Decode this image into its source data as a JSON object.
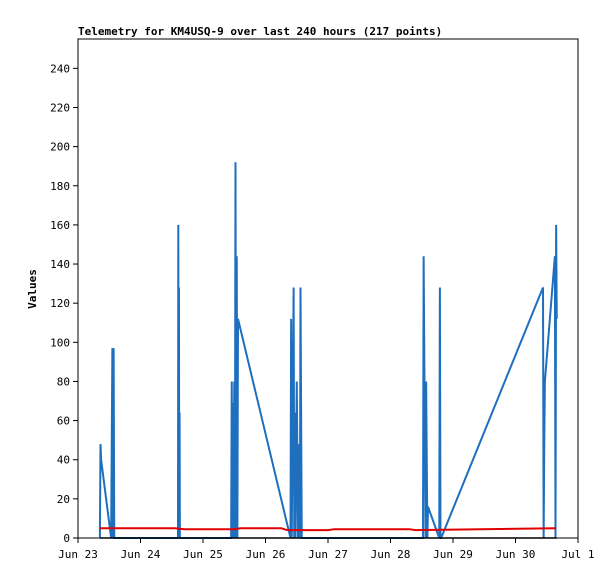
{
  "chart_data": {
    "type": "line",
    "title": "Telemetry for KM4USQ-9 over last 240 hours (217 points)",
    "xlabel": "",
    "ylabel": "Values",
    "xlim": [
      "2023-06-23",
      "2023-07-01"
    ],
    "ylim": [
      0,
      255
    ],
    "x_tick_labels": [
      "Jun 23",
      "Jun 24",
      "Jun 25",
      "Jun 26",
      "Jun 27",
      "Jun 28",
      "Jun 29",
      "Jun 30",
      "Jul 1"
    ],
    "y_tick_labels": [
      "0",
      "20",
      "40",
      "60",
      "80",
      "100",
      "120",
      "140",
      "160",
      "180",
      "200",
      "220",
      "240"
    ],
    "grid": false,
    "legend": "none",
    "x_units": "days after Jun 23",
    "series": [
      {
        "color": "#1f6fbf",
        "x": [
          0.35,
          0.36,
          0.37,
          0.53,
          0.55,
          0.555,
          0.56,
          0.565,
          0.57,
          0.58,
          1.6,
          1.605,
          1.61,
          1.615,
          1.62,
          1.625,
          1.63,
          2.45,
          2.46,
          2.47,
          2.48,
          2.49,
          2.5,
          2.51,
          2.52,
          2.53,
          2.54,
          2.55,
          2.56,
          3.4,
          3.41,
          3.42,
          3.45,
          3.46,
          3.47,
          3.48,
          3.5,
          3.52,
          3.53,
          3.55,
          3.56,
          3.58,
          5.52,
          5.53,
          5.56,
          5.57,
          5.59,
          5.6,
          5.78,
          5.79,
          5.8,
          5.81,
          7.44,
          7.45,
          7.46,
          7.47,
          7.63,
          7.64,
          7.65,
          7.66
        ],
        "y": [
          0,
          48,
          40,
          0,
          97,
          0,
          97,
          0,
          97,
          0,
          0,
          160,
          0,
          128,
          0,
          64,
          0,
          0,
          80,
          0,
          69,
          0,
          80,
          0,
          192,
          0,
          144,
          0,
          112,
          0,
          112,
          0,
          128,
          0,
          64,
          0,
          80,
          0,
          48,
          0,
          128,
          0,
          0,
          144,
          0,
          80,
          0,
          16,
          0,
          128,
          0,
          0,
          128,
          0,
          48,
          80,
          144,
          0,
          160,
          112
        ]
      },
      {
        "color": "#e00000",
        "x": [
          0.35,
          1.55,
          1.7,
          2.5,
          2.6,
          3.25,
          3.35,
          4.0,
          4.1,
          5.3,
          5.4,
          7.65
        ],
        "y": [
          5,
          5,
          4.5,
          4.5,
          5,
          5,
          4,
          4,
          4.5,
          4.5,
          4,
          5
        ]
      }
    ]
  }
}
